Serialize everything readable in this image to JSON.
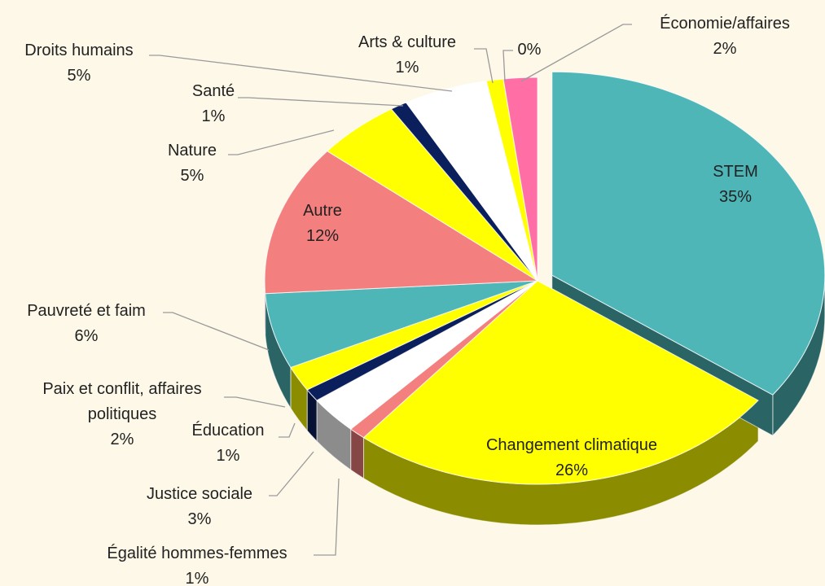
{
  "chart_data": {
    "type": "pie",
    "categories": [
      "STEM",
      "Changement climatique",
      "Égalité hommes-femmes",
      "Justice sociale",
      "Éducation",
      "Paix et conflit, affaires politiques",
      "Pauvreté et faim",
      "Autre",
      "Nature",
      "Santé",
      "Droits humains",
      "Arts & culture",
      null,
      "Économie/affaires"
    ],
    "values": [
      35,
      26,
      1,
      3,
      1,
      2,
      6,
      12,
      5,
      1,
      5,
      1,
      0,
      2
    ],
    "value_labels": [
      "35%",
      "26%",
      "1%",
      "3%",
      "1%",
      "2%",
      "6%",
      "12%",
      "5%",
      "1%",
      "5%",
      "1%",
      "0%",
      "2%"
    ],
    "colors": [
      "#4fb6b8",
      "#ffff00",
      "#f47f7f",
      "#ffffff",
      "#0b1f5c",
      "#ffff00",
      "#4fb6b8",
      "#f47f7f",
      "#ffff00",
      "#0b1f5c",
      "#ffffff",
      "#ffff00",
      "#4fb6b8",
      "#ff6fa6"
    ]
  }
}
